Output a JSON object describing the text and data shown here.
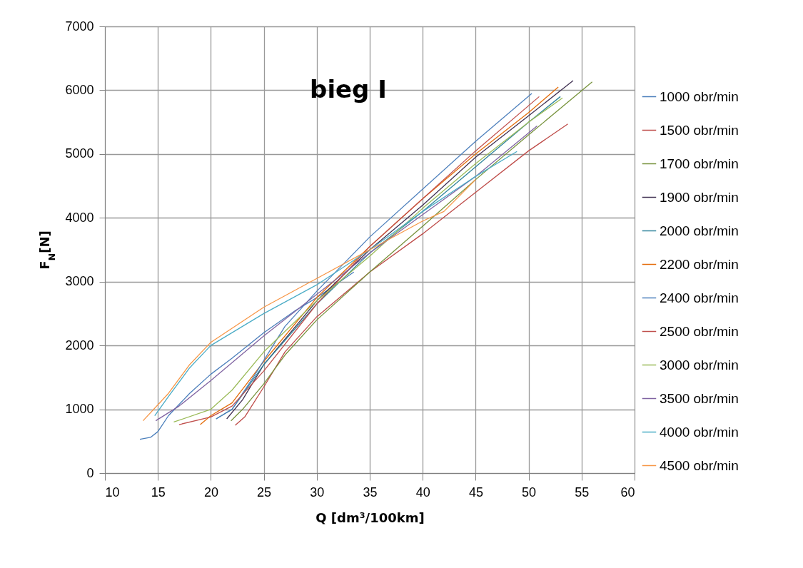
{
  "chart_data": {
    "type": "line",
    "title": "bieg I",
    "xlabel": "Q [dm³/100km]",
    "ylabel": "F$_{N}$[N]",
    "xlim": [
      10,
      60
    ],
    "xticks": [
      10,
      15,
      20,
      25,
      30,
      35,
      40,
      45,
      50,
      55,
      60
    ],
    "ylim": [
      0,
      7000
    ],
    "yticks": [
      0,
      1000,
      2000,
      3000,
      4000,
      5000,
      6000,
      7000
    ],
    "grid": true,
    "legend": "right",
    "marker": "none",
    "line_style": "solid",
    "series": [
      {
        "name": "1000 obr/min",
        "color": "#4a7ebb",
        "x": [
          13.3,
          14.3,
          15,
          16,
          18,
          20,
          22,
          25,
          28,
          30,
          33.5
        ],
        "values": [
          530,
          560,
          650,
          900,
          1250,
          1550,
          1800,
          2200,
          2550,
          2750,
          3150
        ]
      },
      {
        "name": "1500 obr/min",
        "color": "#be4b48",
        "x": [
          22.3,
          23.2,
          25,
          27,
          30,
          35,
          40,
          45,
          50,
          53.7
        ],
        "values": [
          750,
          880,
          1350,
          1900,
          2450,
          3150,
          3750,
          4400,
          5050,
          5470
        ]
      },
      {
        "name": "1700 obr/min",
        "color": "#77933c",
        "x": [
          21.9,
          23,
          25,
          27,
          30,
          35,
          40,
          45,
          50,
          56
        ],
        "values": [
          820,
          1000,
          1400,
          1850,
          2400,
          3150,
          3870,
          4600,
          5300,
          6130
        ]
      },
      {
        "name": "1900 obr/min",
        "color": "#403152",
        "x": [
          21.5,
          23,
          25,
          30,
          35,
          40,
          45,
          50,
          54.2
        ],
        "values": [
          850,
          1150,
          1700,
          2700,
          3500,
          4200,
          4950,
          5600,
          6150
        ]
      },
      {
        "name": "2000 obr/min",
        "color": "#31859c",
        "x": [
          20.5,
          22,
          25,
          30,
          35,
          40,
          45,
          50,
          53
        ],
        "values": [
          850,
          1000,
          1700,
          2650,
          3450,
          4100,
          4800,
          5500,
          5900
        ]
      },
      {
        "name": "2200 obr/min",
        "color": "#e46c0a",
        "x": [
          19,
          20,
          22,
          25,
          30,
          35,
          40,
          45,
          50,
          52.8
        ],
        "values": [
          760,
          900,
          1100,
          1750,
          2750,
          3550,
          4300,
          5000,
          5650,
          6050
        ]
      },
      {
        "name": "2400 obr/min",
        "color": "#4f81bd",
        "x": [
          20.5,
          22,
          24,
          27,
          30,
          35,
          40,
          45,
          50.3
        ],
        "values": [
          850,
          1000,
          1500,
          2300,
          2850,
          3700,
          4450,
          5200,
          5950
        ]
      },
      {
        "name": "2500 obr/min",
        "color": "#c0504d",
        "x": [
          17,
          20,
          22,
          25,
          30,
          35,
          40,
          45,
          51
        ],
        "values": [
          760,
          880,
          1050,
          1600,
          2650,
          3550,
          4300,
          5050,
          5900
        ]
      },
      {
        "name": "3000 obr/min",
        "color": "#9bbb59",
        "x": [
          16.5,
          20,
          22,
          25,
          30,
          35,
          40,
          45,
          50,
          53.2
        ],
        "values": [
          800,
          1000,
          1300,
          1900,
          2700,
          3400,
          4150,
          4850,
          5500,
          5880
        ]
      },
      {
        "name": "3500 obr/min",
        "color": "#8064a2",
        "x": [
          14.8,
          17,
          20,
          25,
          30,
          35,
          40,
          45,
          50.8
        ],
        "values": [
          820,
          1050,
          1450,
          2150,
          2800,
          3450,
          4050,
          4650,
          5440
        ]
      },
      {
        "name": "4000 obr/min",
        "color": "#4bacc6",
        "x": [
          14.7,
          16,
          18,
          20,
          25,
          30,
          35,
          40,
          45,
          48.9
        ],
        "values": [
          900,
          1200,
          1650,
          2000,
          2500,
          2950,
          3500,
          4100,
          4650,
          5040
        ]
      },
      {
        "name": "4500 obr/min",
        "color": "#f79646",
        "x": [
          13.6,
          16,
          18,
          20,
          25,
          30,
          35,
          40,
          42,
          45
        ],
        "values": [
          820,
          1250,
          1700,
          2050,
          2600,
          3050,
          3500,
          3950,
          4100,
          4600
        ]
      }
    ]
  }
}
